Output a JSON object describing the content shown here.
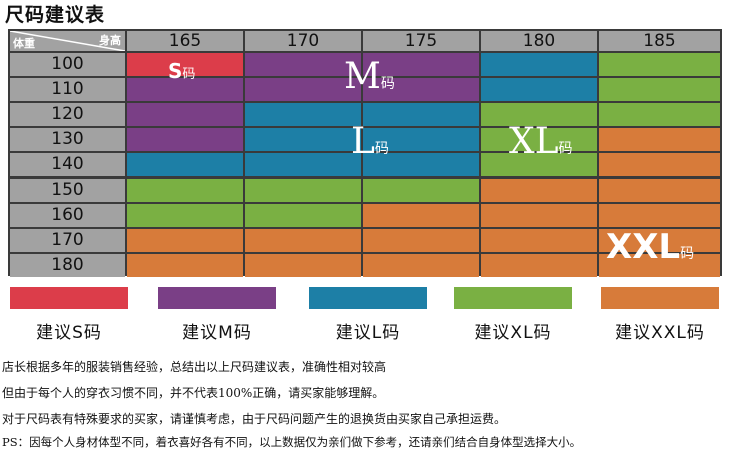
{
  "title": "尺码建议表",
  "corner": {
    "height_label": "身高",
    "weight_label": "体重"
  },
  "heights": [
    "165",
    "170",
    "175",
    "180",
    "185"
  ],
  "weights": [
    "100",
    "110",
    "120",
    "130",
    "140",
    "150",
    "160",
    "170",
    "180"
  ],
  "colors": {
    "S": "#dc3d4a",
    "M": "#7a3f86",
    "L": "#1d7fa6",
    "XL": "#7ab043",
    "XXL": "#d77b3a"
  },
  "grid": [
    [
      "S",
      "M",
      "M",
      "L",
      "XL"
    ],
    [
      "M",
      "M",
      "M",
      "L",
      "XL"
    ],
    [
      "M",
      "L",
      "L",
      "XL",
      "XL"
    ],
    [
      "M",
      "L",
      "L",
      "XL",
      "XXL"
    ],
    [
      "L",
      "L",
      "L",
      "XL",
      "XXL"
    ],
    [
      "XL",
      "XL",
      "XL",
      "XXL",
      "XXL"
    ],
    [
      "XL",
      "XL",
      "XXL",
      "XXL",
      "XXL"
    ],
    [
      "XXL",
      "XXL",
      "XXL",
      "XXL",
      "XXL"
    ],
    [
      "XXL",
      "XXL",
      "XXL",
      "XXL",
      "XXL"
    ]
  ],
  "labels": {
    "S": {
      "letter": "S",
      "unit": "码"
    },
    "M": {
      "letter": "M",
      "unit": "码"
    },
    "L": {
      "letter": "L",
      "unit": "码"
    },
    "XL": {
      "letter": "XL",
      "unit": "码"
    },
    "XXL": {
      "letter": "XXL",
      "unit": "码"
    }
  },
  "legend": [
    {
      "size": "S",
      "text": "建议S码"
    },
    {
      "size": "M",
      "text": "建议M码"
    },
    {
      "size": "L",
      "text": "建议L码"
    },
    {
      "size": "XL",
      "text": "建议XL码"
    },
    {
      "size": "XXL",
      "text": "建议XXL码"
    }
  ],
  "notes": [
    "店长根据多年的服装销售经验，总结出以上尺码建议表，准确性相对较高",
    "但由于每个人的穿衣习惯不同，并不代表100%正确，请买家能够理解。",
    "对于尺码表有特殊要求的买家，请谨慎考虑，由于尺码问题产生的退换货由买家自己承担运费。",
    "PS：因每个人身材体型不同，着衣喜好各有不同，以上数据仅为亲们做下参考，还请亲们结合自身体型选择大小。"
  ]
}
